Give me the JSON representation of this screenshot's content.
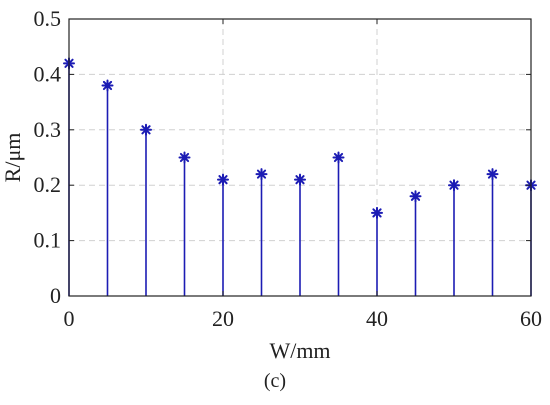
{
  "chart_data": {
    "type": "stem",
    "x": [
      0,
      5,
      10,
      15,
      20,
      25,
      30,
      35,
      40,
      45,
      50,
      55,
      60
    ],
    "values": [
      0.42,
      0.38,
      0.3,
      0.25,
      0.21,
      0.22,
      0.21,
      0.25,
      0.15,
      0.18,
      0.2,
      0.22,
      0.2
    ],
    "xlabel": "W/mm",
    "ylabel": "R/μm",
    "xlim": [
      0,
      60
    ],
    "ylim": [
      0,
      0.5
    ],
    "xticks": [
      "0",
      "20",
      "40",
      "60"
    ],
    "yticks": [
      "0",
      "0.1",
      "0.2",
      "0.3",
      "0.4",
      "0.5"
    ],
    "grid": true,
    "marker": "asterisk",
    "color": "#1c1cb4"
  },
  "caption": "(c)"
}
